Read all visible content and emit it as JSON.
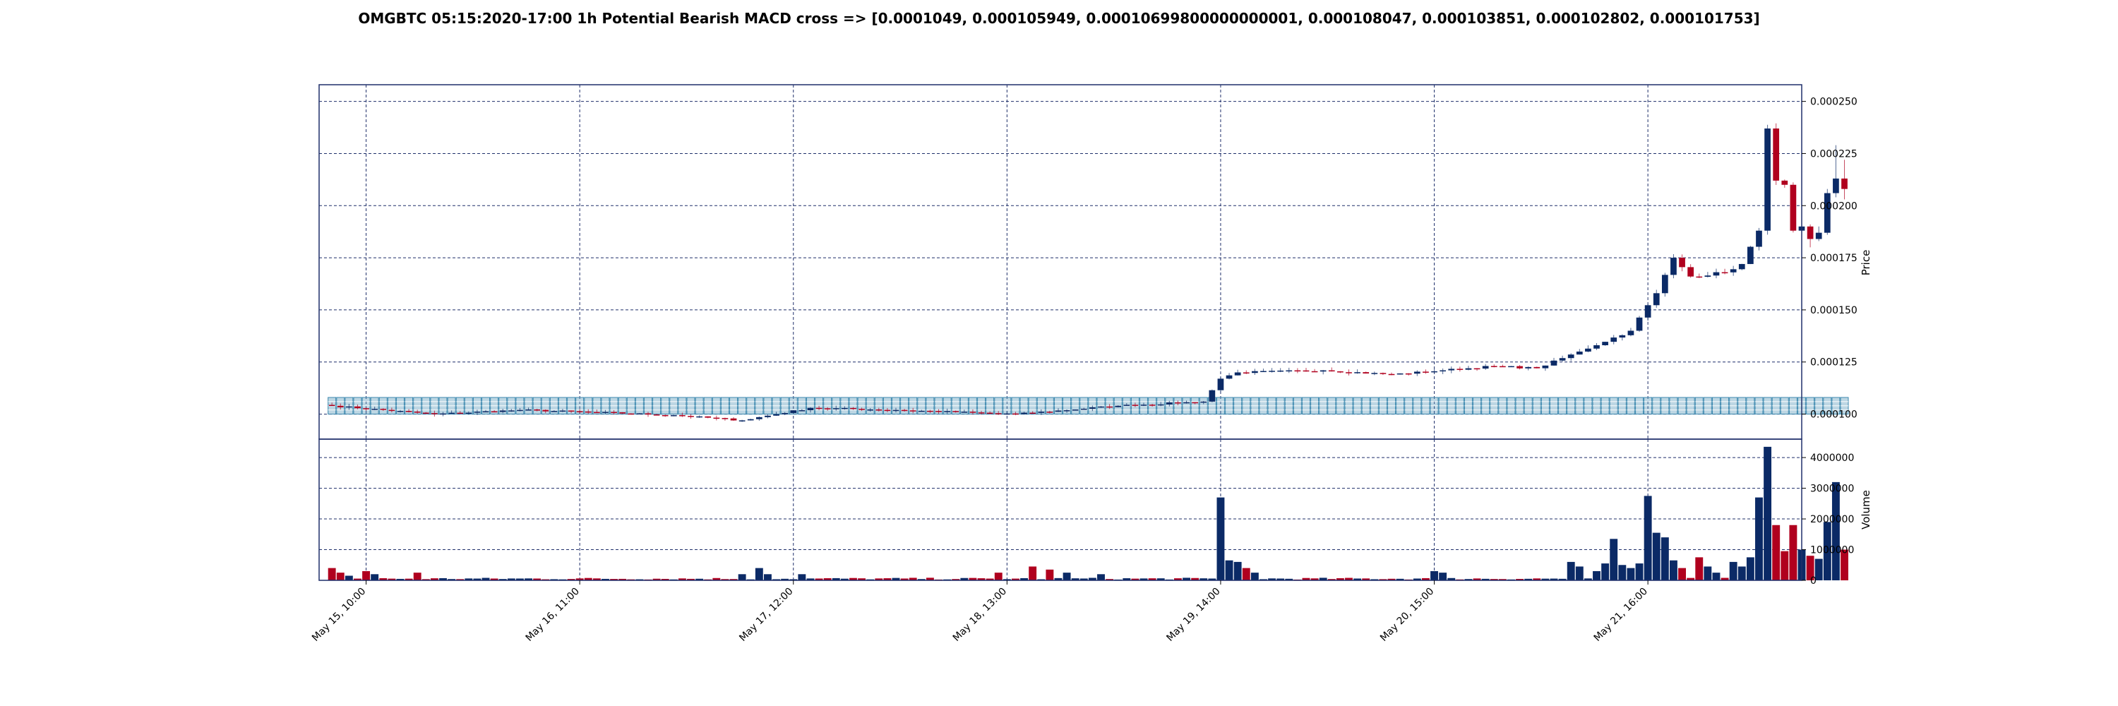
{
  "chart_data": [
    {
      "type": "candlestick",
      "panel": "price",
      "title": "OMGBTC 05:15:2020-17:00 1h Potential Bearish MACD cross => [0.0001049, 0.000105949, 0.00010699800000000001, 0.000108047, 0.000103851, 0.000102802, 0.000101753]",
      "ylabel": "Price",
      "ylim": [
        8.8e-05,
        0.000258
      ],
      "yticks": [
        "0.000100",
        "0.000125",
        "0.000150",
        "0.000175",
        "0.000200",
        "0.000225",
        "0.000250"
      ],
      "ytick_values": [
        0.0001,
        0.000125,
        0.00015,
        0.000175,
        0.0002,
        0.000225,
        0.00025
      ],
      "x_start": "2020-05-15 06:00",
      "x_end": "2020-05-22 10:00",
      "xlim": [
        -1.5,
        172
      ],
      "xtick_labels": [
        "May 15, 10:00",
        "May 16, 11:00",
        "May 17, 12:00",
        "May 18, 13:00",
        "May 19, 14:00",
        "May 20, 15:00",
        "May 21, 16:00"
      ],
      "xtick_hours": [
        4,
        29,
        54,
        79,
        104,
        129,
        154
      ],
      "grid": true,
      "up_color": "#0b2a66",
      "down_color": "#b0001e",
      "fib_band": {
        "low": 0.0001,
        "high": 0.000108,
        "color": "#3f8ab0"
      },
      "keypoints": [
        [
          0,
          0.000104
        ],
        [
          12,
          0.0001
        ],
        [
          22,
          0.000102
        ],
        [
          30,
          0.000101
        ],
        [
          40,
          9.95e-05
        ],
        [
          48,
          9.7e-05
        ],
        [
          56,
          0.000103
        ],
        [
          66,
          0.000102
        ],
        [
          80,
          0.0001
        ],
        [
          92,
          0.000104
        ],
        [
          102,
          0.000106
        ],
        [
          104,
          0.000117
        ],
        [
          106,
          0.00012
        ],
        [
          116,
          0.000121
        ],
        [
          124,
          0.000119
        ],
        [
          130,
          0.000121
        ],
        [
          136,
          0.000123
        ],
        [
          141,
          0.000122
        ],
        [
          146,
          0.00013
        ],
        [
          152,
          0.00014
        ],
        [
          155,
          0.000158
        ],
        [
          157,
          0.000175
        ],
        [
          159,
          0.000166
        ],
        [
          163,
          0.000168
        ],
        [
          165,
          0.000172
        ],
        [
          167,
          0.000188
        ],
        [
          168,
          0.000237
        ],
        [
          169,
          0.000212
        ],
        [
          170,
          0.00021
        ],
        [
          171,
          0.000188
        ]
      ],
      "extra_candles": [
        {
          "x": 172,
          "o": 0.000188,
          "c": 0.00019,
          "h": 0.000192,
          "l": 0.000186
        },
        {
          "x": 173,
          "o": 0.00019,
          "c": 0.000184,
          "h": 0.000191,
          "l": 0.00018
        },
        {
          "x": 174,
          "o": 0.000184,
          "c": 0.000187,
          "h": 0.00019,
          "l": 0.000183
        },
        {
          "x": 175,
          "o": 0.000187,
          "c": 0.000206,
          "h": 0.000208,
          "l": 0.000186
        },
        {
          "x": 176,
          "o": 0.000206,
          "c": 0.000213,
          "h": 0.000229,
          "l": 0.000204
        },
        {
          "x": 177,
          "o": 0.000213,
          "c": 0.000208,
          "h": 0.000222,
          "l": 0.000203
        }
      ]
    },
    {
      "type": "bar",
      "panel": "volume",
      "ylabel": "Volume",
      "ylim": [
        0,
        4600000
      ],
      "yticks": [
        "0",
        "1000000",
        "2000000",
        "3000000",
        "4000000"
      ],
      "ytick_values": [
        0,
        1000000,
        2000000,
        3000000,
        4000000
      ],
      "base_volume": 60000,
      "spikes": [
        [
          0,
          400000
        ],
        [
          1,
          250000
        ],
        [
          2,
          150000
        ],
        [
          4,
          300000
        ],
        [
          5,
          200000
        ],
        [
          10,
          250000
        ],
        [
          48,
          200000
        ],
        [
          50,
          400000
        ],
        [
          51,
          200000
        ],
        [
          55,
          200000
        ],
        [
          78,
          250000
        ],
        [
          82,
          450000
        ],
        [
          84,
          350000
        ],
        [
          86,
          250000
        ],
        [
          90,
          200000
        ],
        [
          104,
          2700000
        ],
        [
          105,
          650000
        ],
        [
          106,
          600000
        ],
        [
          107,
          400000
        ],
        [
          108,
          250000
        ],
        [
          129,
          300000
        ],
        [
          130,
          250000
        ],
        [
          145,
          600000
        ],
        [
          146,
          450000
        ],
        [
          148,
          300000
        ],
        [
          149,
          550000
        ],
        [
          150,
          1350000
        ],
        [
          151,
          500000
        ],
        [
          152,
          400000
        ],
        [
          153,
          550000
        ],
        [
          154,
          2750000
        ],
        [
          155,
          1550000
        ],
        [
          156,
          1400000
        ],
        [
          157,
          650000
        ],
        [
          158,
          400000
        ],
        [
          160,
          750000
        ],
        [
          161,
          450000
        ],
        [
          162,
          250000
        ],
        [
          164,
          600000
        ],
        [
          165,
          450000
        ],
        [
          166,
          750000
        ],
        [
          167,
          2700000
        ],
        [
          168,
          4350000
        ],
        [
          169,
          1800000
        ],
        [
          170,
          950000
        ],
        [
          171,
          1800000
        ],
        [
          172,
          1000000
        ],
        [
          173,
          800000
        ],
        [
          174,
          700000
        ],
        [
          175,
          1900000
        ],
        [
          176,
          3200000
        ],
        [
          177,
          1000000
        ]
      ]
    }
  ]
}
